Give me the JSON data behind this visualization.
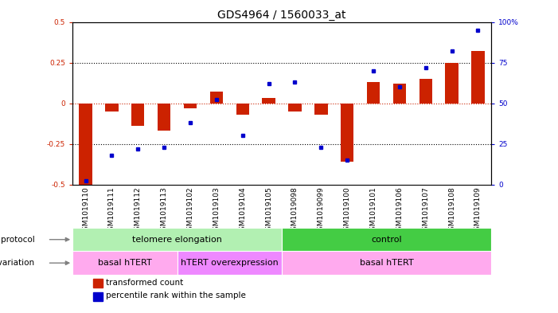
{
  "title": "GDS4964 / 1560033_at",
  "samples": [
    "GSM1019110",
    "GSM1019111",
    "GSM1019112",
    "GSM1019113",
    "GSM1019102",
    "GSM1019103",
    "GSM1019104",
    "GSM1019105",
    "GSM1019098",
    "GSM1019099",
    "GSM1019100",
    "GSM1019101",
    "GSM1019106",
    "GSM1019107",
    "GSM1019108",
    "GSM1019109"
  ],
  "transformed_count": [
    -0.5,
    -0.05,
    -0.14,
    -0.17,
    -0.03,
    0.07,
    -0.07,
    0.03,
    -0.05,
    -0.07,
    -0.36,
    0.13,
    0.12,
    0.15,
    0.25,
    0.32
  ],
  "percentile_rank": [
    2,
    18,
    22,
    23,
    38,
    52,
    30,
    62,
    63,
    23,
    15,
    70,
    60,
    72,
    82,
    95
  ],
  "protocol_groups": [
    {
      "label": "telomere elongation",
      "start": 0,
      "end": 8,
      "color": "#b2f0b2"
    },
    {
      "label": "control",
      "start": 8,
      "end": 16,
      "color": "#44cc44"
    }
  ],
  "genotype_groups": [
    {
      "label": "basal hTERT",
      "start": 0,
      "end": 4,
      "color": "#ffaaee"
    },
    {
      "label": "hTERT overexpression",
      "start": 4,
      "end": 8,
      "color": "#ee88ff"
    },
    {
      "label": "basal hTERT",
      "start": 8,
      "end": 16,
      "color": "#ffaaee"
    }
  ],
  "bar_color": "#cc2200",
  "dot_color": "#0000cc",
  "ylim": [
    -0.5,
    0.5
  ],
  "y2lim": [
    0,
    100
  ],
  "yticks": [
    -0.5,
    -0.25,
    0,
    0.25,
    0.5
  ],
  "y2ticks": [
    0,
    25,
    50,
    75,
    100
  ],
  "hline_color": "#cc2200",
  "dotted_color": "black",
  "bg_color": "white",
  "xtick_bg": "#cccccc",
  "title_fontsize": 10,
  "tick_fontsize": 6.5,
  "label_fontsize": 7.5,
  "legend_fontsize": 7.5,
  "annotation_fontsize": 8
}
